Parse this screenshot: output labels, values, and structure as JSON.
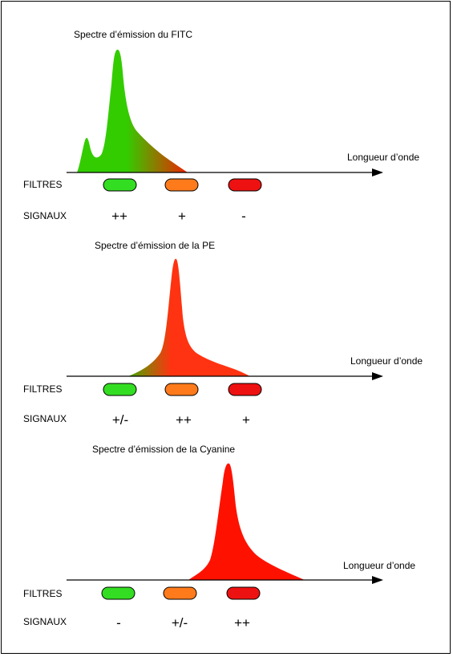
{
  "panels": [
    {
      "title": "Spectre d’émission du FITC",
      "axis_label": "Longueur d’onde",
      "filters_label": "FILTRES",
      "signals_label": "SIGNAUX",
      "signals": [
        "++",
        "+",
        "-"
      ]
    },
    {
      "title": "Spectre d’émission de la PE",
      "axis_label": "Longueur d’onde",
      "filters_label": "FILTRES",
      "signals_label": "SIGNAUX",
      "signals": [
        "+/-",
        "++",
        "+"
      ]
    },
    {
      "title": "Spectre d’émission de la Cyanine",
      "axis_label": "Longueur d’onde",
      "filters_label": "FILTRES",
      "signals_label": "SIGNAUX",
      "signals": [
        "-",
        "+/-",
        "++"
      ]
    }
  ],
  "filter_colors": [
    "#33dd22",
    "#ff7a1a",
    "#ee1111"
  ],
  "spectrum_colors": {
    "fitc": [
      "#33cc00",
      "#ee2200"
    ],
    "pe": [
      "#ff3311",
      "#44aa00"
    ],
    "cyanine": [
      "#ff1100"
    ]
  }
}
